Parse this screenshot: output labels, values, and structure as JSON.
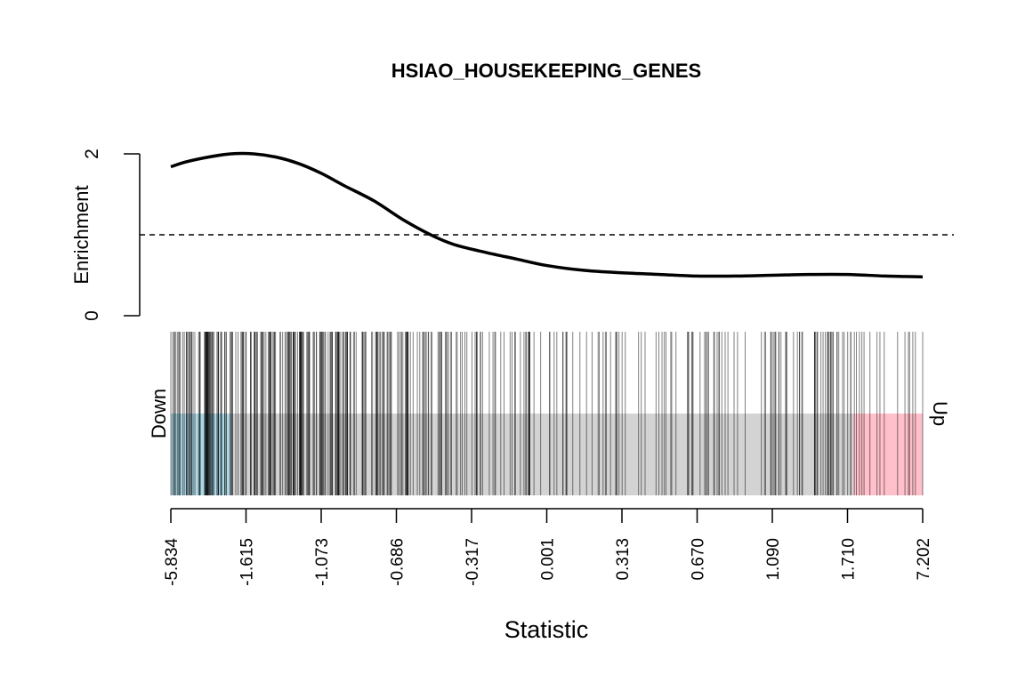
{
  "chart_data": {
    "type": "line",
    "title": "HSIAO_HOUSEKEEPING_GENES",
    "xlabel": "Statistic",
    "ylabel": "Enrichment",
    "y_ticks": [
      "0",
      "2"
    ],
    "ylim": [
      0,
      2
    ],
    "reference_line": 1,
    "x_tick_labels": [
      "-5.834",
      "-1.615",
      "-1.073",
      "-0.686",
      "-0.317",
      "0.001",
      "0.313",
      "0.670",
      "1.090",
      "1.710",
      "7.202"
    ],
    "rank_range": [
      0,
      1
    ],
    "series": [
      {
        "x": [
          0.0,
          0.02,
          0.05,
          0.08,
          0.11,
          0.14,
          0.17,
          0.2,
          0.23,
          0.27,
          0.31,
          0.35,
          0.38,
          0.42,
          0.46,
          0.5,
          0.55,
          0.6,
          0.65,
          0.7,
          0.75,
          0.8,
          0.85,
          0.9,
          0.95,
          1.0
        ],
        "y": [
          1.84,
          1.9,
          1.96,
          2.0,
          2.0,
          1.96,
          1.88,
          1.76,
          1.61,
          1.42,
          1.18,
          0.98,
          0.87,
          0.78,
          0.7,
          0.62,
          0.56,
          0.53,
          0.51,
          0.49,
          0.49,
          0.5,
          0.51,
          0.51,
          0.49,
          0.48
        ]
      }
    ],
    "barcode": {
      "down_label": "Down",
      "up_label": "Up",
      "down_region_end": 0.08,
      "up_region_start": 0.908,
      "colors": {
        "down": "#add8e6",
        "middle": "#d3d3d3",
        "up": "#ffc0cb",
        "tick": "#000000"
      },
      "density": [
        [
          0.0,
          1.8
        ],
        [
          0.08,
          2.0
        ],
        [
          0.18,
          2.0
        ],
        [
          0.28,
          1.5
        ],
        [
          0.38,
          0.9
        ],
        [
          0.5,
          0.6
        ],
        [
          0.6,
          0.5
        ],
        [
          0.8,
          0.5
        ],
        [
          1.0,
          0.45
        ]
      ],
      "seed": 17,
      "count": 420
    }
  }
}
